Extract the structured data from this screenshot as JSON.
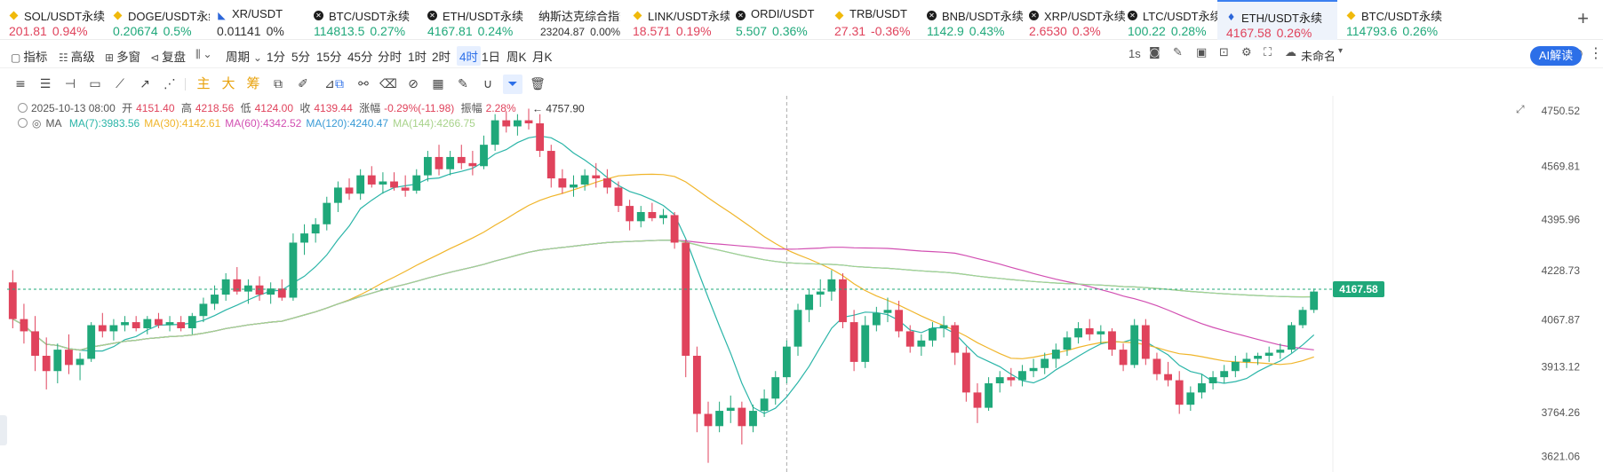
{
  "tickers": [
    {
      "name": "SOL/USDT永续",
      "price": "201.81",
      "change": "0.94%",
      "dir": "down",
      "icon": "diamond"
    },
    {
      "name": "DOGE/USDT永续",
      "price": "0.20674",
      "change": "0.5%",
      "dir": "up",
      "icon": "diamond"
    },
    {
      "name": "XR/USDT",
      "price": "0.01141",
      "change": "0%",
      "dir": "flat",
      "icon": "xr"
    },
    {
      "name": "BTC/USDT永续",
      "price": "114813.5",
      "change": "0.27%",
      "dir": "up",
      "icon": "x-circle"
    },
    {
      "name": "ETH/USDT永续",
      "price": "4167.81",
      "change": "0.24%",
      "dir": "up",
      "icon": "x-circle"
    },
    {
      "name": "纳斯达克综合指数",
      "price": "23204.87",
      "change": "0.00%",
      "dir": "flat",
      "icon": "none",
      "small": true
    },
    {
      "name": "LINK/USDT永续",
      "price": "18.571",
      "change": "0.19%",
      "dir": "down",
      "icon": "diamond"
    },
    {
      "name": "ORDI/USDT",
      "price": "5.507",
      "change": "0.36%",
      "dir": "up",
      "icon": "x-circle"
    },
    {
      "name": "TRB/USDT",
      "price": "27.31",
      "change": "-0.36%",
      "dir": "down",
      "icon": "diamond"
    },
    {
      "name": "BNB/USDT永续",
      "price": "1142.9",
      "change": "0.43%",
      "dir": "up",
      "icon": "x-circle"
    },
    {
      "name": "XRP/USDT永续",
      "price": "2.6530",
      "change": "0.3%",
      "dir": "down",
      "icon": "x-circle"
    },
    {
      "name": "LTC/USDT永续",
      "price": "100.22",
      "change": "0.28%",
      "dir": "up",
      "icon": "x-circle"
    },
    {
      "name": "ETH/USDT永续",
      "price": "4167.58",
      "change": "0.26%",
      "dir": "down",
      "icon": "eth",
      "active": true
    },
    {
      "name": "BTC/USDT永续",
      "price": "114793.6",
      "change": "0.26%",
      "dir": "up",
      "icon": "diamond"
    }
  ],
  "toolbar": {
    "indicators": "指标",
    "advanced": "高级",
    "multi_window": "多窗",
    "replay": "复盘",
    "period": "周期",
    "intervals": [
      "1分",
      "5分",
      "15分",
      "45分",
      "分时",
      "1时",
      "2时",
      "4时",
      "1日",
      "周K",
      "月K"
    ],
    "selected_interval": "4时",
    "refresh": "1s",
    "layout_name": "未命名",
    "ai_label": "AI解读"
  },
  "drawing_tools": {
    "main": "主",
    "big": "大",
    "chips": "筹"
  },
  "legend": {
    "date": "2025-10-13 08:00",
    "open_label": "开",
    "open": "4151.40",
    "high_label": "高",
    "high": "4218.56",
    "low_label": "低",
    "low": "4124.00",
    "close_label": "收",
    "close": "4139.44",
    "change_label": "涨幅",
    "change": "-0.29%(-11.98)",
    "amp_label": "振幅",
    "amp": "2.28%",
    "ma_label": "MA",
    "ma": [
      {
        "text": "MA(7):3983.56",
        "color": "#2bb5a8"
      },
      {
        "text": "MA(30):4142.61",
        "color": "#f0b52a"
      },
      {
        "text": "MA(60):4342.52",
        "color": "#d24fb2"
      },
      {
        "text": "MA(120):4240.47",
        "color": "#3a9bd6"
      },
      {
        "text": "MA(144):4266.75",
        "color": "#a8d38b"
      }
    ]
  },
  "chart_data": {
    "type": "candlestick",
    "symbol": "ETH/USDT永续",
    "interval": "4时",
    "ylim": [
      3570,
      4800
    ],
    "y_ticks": [
      "4750.52",
      "4569.81",
      "4395.96",
      "4228.73",
      "4067.87",
      "3913.12",
      "3764.26",
      "3621.06"
    ],
    "last_price": "4167.58",
    "max_marker": "4757.90",
    "colors": {
      "up": "#1fa87a",
      "down": "#e0435c"
    },
    "candles": [
      [
        4190,
        4230,
        4040,
        4070
      ],
      [
        4070,
        4120,
        3990,
        4030
      ],
      [
        4030,
        4080,
        3900,
        3950
      ],
      [
        3950,
        4010,
        3840,
        3900
      ],
      [
        3900,
        3990,
        3860,
        3970
      ],
      [
        3970,
        4020,
        3890,
        3920
      ],
      [
        3920,
        3960,
        3870,
        3940
      ],
      [
        3940,
        4060,
        3930,
        4050
      ],
      [
        4050,
        4090,
        4010,
        4030
      ],
      [
        4030,
        4070,
        4000,
        4050
      ],
      [
        4050,
        4080,
        4030,
        4060
      ],
      [
        4060,
        4080,
        4030,
        4040
      ],
      [
        4040,
        4080,
        4020,
        4070
      ],
      [
        4070,
        4090,
        4040,
        4050
      ],
      [
        4050,
        4080,
        4030,
        4060
      ],
      [
        4060,
        4080,
        4030,
        4040
      ],
      [
        4040,
        4090,
        4020,
        4080
      ],
      [
        4080,
        4140,
        4060,
        4120
      ],
      [
        4120,
        4180,
        4100,
        4150
      ],
      [
        4150,
        4220,
        4130,
        4200
      ],
      [
        4200,
        4240,
        4150,
        4160
      ],
      [
        4160,
        4200,
        4120,
        4180
      ],
      [
        4180,
        4210,
        4130,
        4150
      ],
      [
        4150,
        4190,
        4120,
        4170
      ],
      [
        4170,
        4200,
        4130,
        4140
      ],
      [
        4140,
        4350,
        4130,
        4320
      ],
      [
        4320,
        4380,
        4280,
        4350
      ],
      [
        4350,
        4400,
        4320,
        4380
      ],
      [
        4380,
        4470,
        4360,
        4450
      ],
      [
        4450,
        4520,
        4420,
        4500
      ],
      [
        4500,
        4530,
        4460,
        4480
      ],
      [
        4480,
        4560,
        4460,
        4540
      ],
      [
        4540,
        4570,
        4500,
        4510
      ],
      [
        4510,
        4550,
        4480,
        4520
      ],
      [
        4520,
        4550,
        4490,
        4500
      ],
      [
        4500,
        4540,
        4470,
        4490
      ],
      [
        4490,
        4560,
        4480,
        4540
      ],
      [
        4540,
        4620,
        4520,
        4600
      ],
      [
        4600,
        4640,
        4540,
        4560
      ],
      [
        4560,
        4620,
        4540,
        4600
      ],
      [
        4600,
        4640,
        4560,
        4580
      ],
      [
        4580,
        4620,
        4540,
        4570
      ],
      [
        4570,
        4670,
        4560,
        4640
      ],
      [
        4640,
        4740,
        4620,
        4720
      ],
      [
        4720,
        4750,
        4680,
        4700
      ],
      [
        4700,
        4740,
        4670,
        4720
      ],
      [
        4720,
        4758,
        4690,
        4710
      ],
      [
        4710,
        4740,
        4600,
        4620
      ],
      [
        4620,
        4640,
        4500,
        4530
      ],
      [
        4530,
        4560,
        4480,
        4500
      ],
      [
        4500,
        4540,
        4470,
        4510
      ],
      [
        4510,
        4560,
        4490,
        4540
      ],
      [
        4540,
        4580,
        4500,
        4530
      ],
      [
        4530,
        4560,
        4480,
        4500
      ],
      [
        4500,
        4520,
        4420,
        4440
      ],
      [
        4440,
        4460,
        4360,
        4390
      ],
      [
        4390,
        4440,
        4370,
        4420
      ],
      [
        4420,
        4450,
        4390,
        4400
      ],
      [
        4400,
        4430,
        4380,
        4410
      ],
      [
        4410,
        4420,
        4300,
        4320
      ],
      [
        4320,
        4330,
        3880,
        3950
      ],
      [
        3950,
        3980,
        3700,
        3760
      ],
      [
        3760,
        3800,
        3600,
        3720
      ],
      [
        3720,
        3800,
        3700,
        3770
      ],
      [
        3770,
        3820,
        3730,
        3780
      ],
      [
        3780,
        3800,
        3660,
        3720
      ],
      [
        3720,
        3790,
        3700,
        3770
      ],
      [
        3770,
        3840,
        3750,
        3810
      ],
      [
        3810,
        3900,
        3790,
        3880
      ],
      [
        3880,
        4000,
        3860,
        3980
      ],
      [
        3980,
        4120,
        3950,
        4100
      ],
      [
        4100,
        4170,
        4060,
        4150
      ],
      [
        4150,
        4200,
        4110,
        4160
      ],
      [
        4160,
        4230,
        4130,
        4200
      ],
      [
        4200,
        4220,
        4040,
        4060
      ],
      [
        4060,
        4100,
        3900,
        3930
      ],
      [
        3930,
        4080,
        3910,
        4050
      ],
      [
        4050,
        4110,
        4030,
        4090
      ],
      [
        4090,
        4140,
        4060,
        4100
      ],
      [
        4100,
        4130,
        4010,
        4030
      ],
      [
        4030,
        4050,
        3960,
        3980
      ],
      [
        3980,
        4020,
        3950,
        4000
      ],
      [
        4000,
        4060,
        3980,
        4040
      ],
      [
        4040,
        4080,
        4010,
        4050
      ],
      [
        4050,
        4060,
        3920,
        3960
      ],
      [
        3960,
        3980,
        3800,
        3830
      ],
      [
        3830,
        3860,
        3730,
        3780
      ],
      [
        3780,
        3880,
        3770,
        3860
      ],
      [
        3860,
        3900,
        3830,
        3880
      ],
      [
        3880,
        3910,
        3850,
        3870
      ],
      [
        3870,
        3920,
        3850,
        3900
      ],
      [
        3900,
        3940,
        3880,
        3910
      ],
      [
        3910,
        3960,
        3890,
        3940
      ],
      [
        3940,
        3990,
        3910,
        3970
      ],
      [
        3970,
        4030,
        3950,
        4010
      ],
      [
        4010,
        4060,
        3990,
        4040
      ],
      [
        4040,
        4070,
        4000,
        4020
      ],
      [
        4020,
        4050,
        3990,
        4030
      ],
      [
        4030,
        4040,
        3950,
        3970
      ],
      [
        3970,
        3990,
        3900,
        3920
      ],
      [
        3920,
        4070,
        3910,
        4050
      ],
      [
        4050,
        4070,
        3920,
        3940
      ],
      [
        3940,
        3960,
        3870,
        3890
      ],
      [
        3890,
        3930,
        3850,
        3870
      ],
      [
        3870,
        3900,
        3760,
        3790
      ],
      [
        3790,
        3850,
        3770,
        3830
      ],
      [
        3830,
        3890,
        3810,
        3860
      ],
      [
        3860,
        3900,
        3840,
        3880
      ],
      [
        3880,
        3920,
        3860,
        3900
      ],
      [
        3900,
        3950,
        3880,
        3930
      ],
      [
        3930,
        3960,
        3910,
        3940
      ],
      [
        3940,
        3960,
        3920,
        3950
      ],
      [
        3950,
        3980,
        3930,
        3960
      ],
      [
        3960,
        3990,
        3940,
        3970
      ],
      [
        3970,
        4060,
        3960,
        4050
      ],
      [
        4050,
        4110,
        4040,
        4100
      ],
      [
        4100,
        4170,
        4090,
        4160
      ]
    ]
  }
}
